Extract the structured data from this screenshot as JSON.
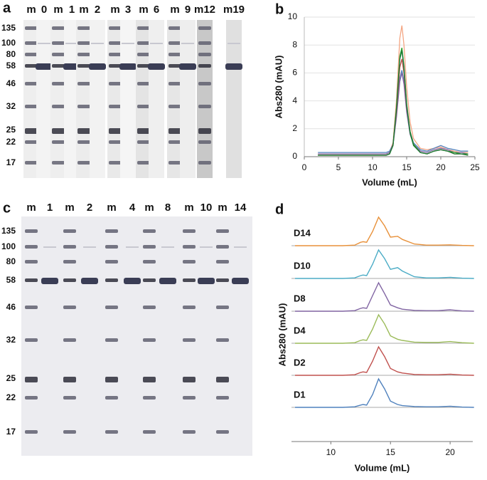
{
  "gels": [
    {
      "panel": "a",
      "lanes": [
        "m",
        "0",
        "m",
        "1",
        "m",
        "2",
        "m",
        "3",
        "m",
        "6",
        "m",
        "9",
        "m12",
        "m19"
      ],
      "markers": [
        "135",
        "100",
        "80",
        "58",
        "46",
        "32",
        "25",
        "22",
        "17"
      ]
    },
    {
      "panel": "c",
      "lanes": [
        "m",
        "1",
        "m",
        "2",
        "m",
        "4",
        "m",
        "8",
        "m",
        "10",
        "m",
        "14"
      ],
      "markers": [
        "135",
        "100",
        "80",
        "58",
        "46",
        "32",
        "25",
        "22",
        "17"
      ]
    }
  ],
  "chart_data": [
    {
      "type": "line",
      "panel": "b",
      "xlabel": "Volume (mL)",
      "ylabel": "Abs280 (mAU)",
      "xlim": [
        0,
        25
      ],
      "xticks": [
        0,
        5,
        10,
        15,
        20,
        25
      ],
      "ylim": [
        0,
        10
      ],
      "yticks": [
        0,
        2,
        4,
        6,
        8,
        10
      ],
      "grid": true,
      "x": [
        2,
        4,
        6,
        8,
        10,
        12,
        12.5,
        13,
        13.5,
        14,
        14.3,
        14.6,
        15,
        15.5,
        16,
        17,
        18,
        19,
        20,
        21,
        22,
        23,
        24
      ],
      "series": [
        {
          "color": "#f4a582",
          "values": [
            0.2,
            0.2,
            0.2,
            0.2,
            0.2,
            0.2,
            0.3,
            1.0,
            4,
            8.5,
            9.4,
            8,
            5,
            2.5,
            1.3,
            0.6,
            0.5,
            0.6,
            0.7,
            0.5,
            0.4,
            0.3,
            0.3
          ]
        },
        {
          "color": "#4f81bd",
          "values": [
            0.3,
            0.3,
            0.3,
            0.3,
            0.3,
            0.3,
            0.4,
            0.9,
            3,
            5.6,
            6.2,
            5.4,
            3.4,
            1.8,
            1.0,
            0.5,
            0.4,
            0.6,
            0.8,
            0.6,
            0.5,
            0.4,
            0.4
          ]
        },
        {
          "color": "#8064a2",
          "values": [
            0.2,
            0.2,
            0.2,
            0.2,
            0.2,
            0.2,
            0.3,
            0.8,
            2.8,
            5.4,
            6.0,
            5.2,
            3.2,
            1.6,
            0.9,
            0.4,
            0.3,
            0.5,
            0.6,
            0.5,
            0.3,
            0.3,
            0.2
          ]
        },
        {
          "color": "#c0504d",
          "values": [
            0.1,
            0.1,
            0.1,
            0.1,
            0.1,
            0.1,
            0.2,
            0.9,
            3.2,
            6.4,
            7.0,
            6.0,
            3.6,
            1.8,
            0.9,
            0.3,
            0.2,
            0.4,
            0.5,
            0.4,
            0.2,
            0.2,
            0.1
          ]
        },
        {
          "color": "#2ca02c",
          "values": [
            0.1,
            0.1,
            0.1,
            0.1,
            0.1,
            0.1,
            0.2,
            0.8,
            3.5,
            7.2,
            7.8,
            6.5,
            3.8,
            1.8,
            0.9,
            0.3,
            0.2,
            0.4,
            0.5,
            0.4,
            0.3,
            0.2,
            0.2
          ]
        },
        {
          "color": "#1b7837",
          "values": [
            0.1,
            0.1,
            0.1,
            0.1,
            0.1,
            0.1,
            0.2,
            0.8,
            3.4,
            7.0,
            7.6,
            6.4,
            3.7,
            1.7,
            0.8,
            0.3,
            0.2,
            0.4,
            0.5,
            0.4,
            0.2,
            0.2,
            0.1
          ]
        }
      ]
    },
    {
      "type": "line",
      "panel": "d",
      "xlabel": "Volume (mL)",
      "ylabel": "Abs280 (mAU)",
      "xlim": [
        6.7,
        21.9
      ],
      "xticks": [
        10,
        15,
        20
      ],
      "x": [
        7,
        9,
        11,
        12,
        12.5,
        12.7,
        13,
        13.5,
        14,
        14.5,
        15,
        15.6,
        16,
        17,
        18,
        19,
        20,
        21,
        22
      ],
      "series": [
        {
          "name": "D14",
          "color": "#e8913a",
          "values": [
            0,
            0,
            0,
            0.02,
            0.12,
            0.14,
            0.12,
            0.5,
            1,
            0.7,
            0.3,
            0.33,
            0.22,
            0.06,
            0.02,
            0.02,
            0.03,
            0.01,
            0
          ]
        },
        {
          "name": "D10",
          "color": "#4bacc6",
          "values": [
            0,
            0,
            0,
            0.02,
            0.1,
            0.12,
            0.1,
            0.5,
            1,
            0.7,
            0.32,
            0.38,
            0.26,
            0.06,
            0.02,
            0.02,
            0.04,
            0.01,
            0
          ]
        },
        {
          "name": "D8",
          "color": "#8064a2",
          "values": [
            0,
            0,
            0,
            0.02,
            0.1,
            0.12,
            0.1,
            0.55,
            1,
            0.62,
            0.22,
            0.12,
            0.07,
            0.03,
            0.02,
            0.02,
            0.05,
            0.01,
            0
          ]
        },
        {
          "name": "D4",
          "color": "#9bbb59",
          "values": [
            0,
            0,
            0,
            0.02,
            0.1,
            0.12,
            0.1,
            0.5,
            1,
            0.68,
            0.26,
            0.14,
            0.1,
            0.04,
            0.03,
            0.03,
            0.06,
            0.02,
            0
          ]
        },
        {
          "name": "D2",
          "color": "#c0504d",
          "values": [
            0,
            0,
            0,
            0.02,
            0.1,
            0.12,
            0.1,
            0.5,
            1,
            0.66,
            0.24,
            0.12,
            0.08,
            0.03,
            0.02,
            0.02,
            0.04,
            0.01,
            0
          ]
        },
        {
          "name": "D1",
          "color": "#4f81bd",
          "values": [
            0,
            0,
            0,
            0.02,
            0.08,
            0.1,
            0.08,
            0.45,
            1,
            0.65,
            0.22,
            0.1,
            0.06,
            0.03,
            0.02,
            0.02,
            0.04,
            0.01,
            0
          ]
        }
      ]
    }
  ]
}
